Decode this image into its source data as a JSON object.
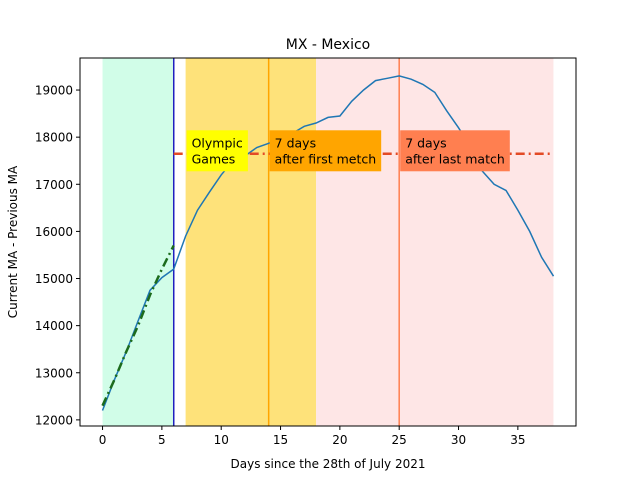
{
  "chart_data": {
    "type": "line",
    "title": "MX - Mexico",
    "xlabel": "Days since the 28th of July 2021",
    "ylabel": "Current MA - Previous MA",
    "xlim": [
      -1.9,
      39.9
    ],
    "ylim": [
      11870,
      19680
    ],
    "xticks": [
      0,
      5,
      10,
      15,
      20,
      25,
      30,
      35
    ],
    "yticks": [
      12000,
      13000,
      14000,
      15000,
      16000,
      17000,
      18000,
      19000
    ],
    "grid": false,
    "bands": [
      {
        "x0": 0,
        "x1": 6,
        "color": "#d1fde8"
      },
      {
        "x0": 7,
        "x1": 18,
        "color": "#fee27a"
      },
      {
        "x0": 18,
        "x1": 38,
        "color": "#fee6e6"
      }
    ],
    "vlines": [
      {
        "x": 6,
        "color": "#1f1fbf"
      },
      {
        "x": 14,
        "color": "#ffa500"
      },
      {
        "x": 25,
        "color": "#ff7f50"
      }
    ],
    "annotations": [
      {
        "text": [
          "Olympic",
          "Games"
        ],
        "x": 7,
        "y": 17700,
        "bg": "#ffff00"
      },
      {
        "text": [
          "7 days",
          "after first metch"
        ],
        "x": 14,
        "y": 17700,
        "bg": "#ffa500"
      },
      {
        "text": [
          "7 days",
          "after last match"
        ],
        "x": 25,
        "y": 17700,
        "bg": "#ff7f50"
      }
    ],
    "series": [
      {
        "style": "solid",
        "color": "#1f77b4",
        "x": [
          0,
          1,
          2,
          3,
          4,
          5,
          6,
          7,
          8,
          9,
          10,
          11,
          12,
          13,
          14,
          15,
          16,
          17,
          18,
          19,
          20,
          21,
          22,
          23,
          24,
          25,
          26,
          27,
          28,
          29,
          30,
          31,
          32,
          33,
          34,
          35,
          36,
          37,
          38
        ],
        "y": [
          12200,
          12850,
          13450,
          14100,
          14750,
          15020,
          15200,
          15900,
          16450,
          16830,
          17200,
          17500,
          17600,
          17780,
          17870,
          17970,
          18080,
          18230,
          18300,
          18420,
          18450,
          18760,
          19000,
          19200,
          19250,
          19300,
          19230,
          19120,
          18950,
          18560,
          18200,
          17800,
          17280,
          17000,
          16870,
          16450,
          16000,
          15450,
          15050
        ]
      },
      {
        "style": "dashdot",
        "color": "#1c6b1c",
        "x": [
          0,
          1,
          2,
          3,
          4,
          5,
          6
        ],
        "y": [
          12300,
          12850,
          13450,
          14000,
          14650,
          15200,
          15700
        ]
      },
      {
        "style": "dashdot",
        "color": "#e34a25",
        "x": [
          6,
          7,
          8,
          9,
          10,
          11,
          12,
          13,
          14,
          15,
          16,
          17,
          18,
          19,
          20,
          21,
          22,
          23,
          24,
          25,
          26,
          27,
          28,
          29,
          30,
          31,
          32,
          33,
          34,
          35,
          36,
          37,
          38
        ],
        "y": [
          17650,
          17650,
          17650,
          17650,
          17650,
          17650,
          17650,
          17650,
          17650,
          17650,
          17650,
          17650,
          17650,
          17650,
          17650,
          17650,
          17650,
          17650,
          17650,
          17650,
          17650,
          17650,
          17650,
          17650,
          17650,
          17650,
          17650,
          17650,
          17650,
          17650,
          17650,
          17650,
          17650
        ]
      }
    ]
  }
}
